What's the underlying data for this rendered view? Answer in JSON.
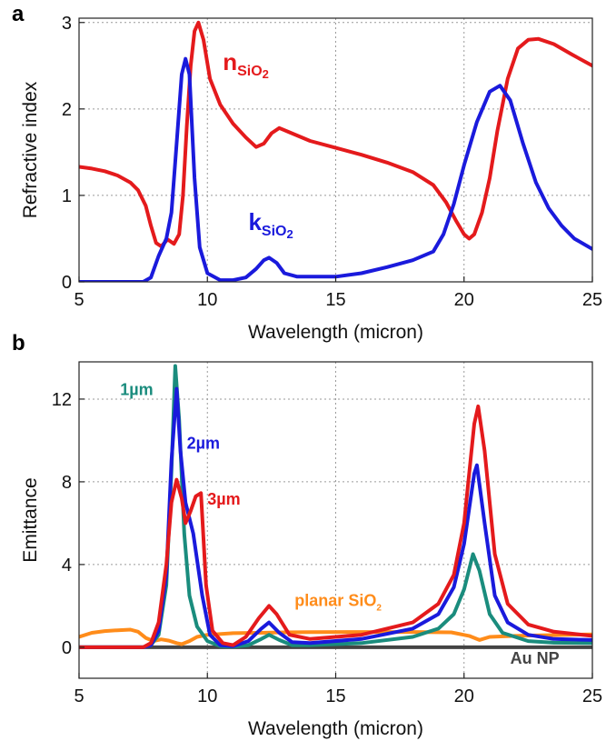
{
  "chart_data": [
    {
      "panel": "a",
      "type": "line",
      "title": "",
      "xlabel": "Wavelength (micron)",
      "ylabel": "Refractive index",
      "xlim": [
        5,
        25
      ],
      "ylim": [
        0,
        3.05
      ],
      "xticks": [
        5,
        10,
        15,
        20,
        25
      ],
      "yticks": [
        0,
        1,
        2,
        3
      ],
      "grid": "dotted",
      "series": [
        {
          "id": "n",
          "color": "#e41a1c",
          "points": [
            [
              5,
              1.33
            ],
            [
              5.5,
              1.31
            ],
            [
              6,
              1.28
            ],
            [
              6.5,
              1.23
            ],
            [
              7,
              1.15
            ],
            [
              7.3,
              1.06
            ],
            [
              7.6,
              0.88
            ],
            [
              7.8,
              0.65
            ],
            [
              8.0,
              0.45
            ],
            [
              8.2,
              0.41
            ],
            [
              8.45,
              0.49
            ],
            [
              8.7,
              0.44
            ],
            [
              8.9,
              0.55
            ],
            [
              9.05,
              1.0
            ],
            [
              9.2,
              1.8
            ],
            [
              9.35,
              2.5
            ],
            [
              9.5,
              2.9
            ],
            [
              9.65,
              3.0
            ],
            [
              9.85,
              2.8
            ],
            [
              10.1,
              2.35
            ],
            [
              10.5,
              2.05
            ],
            [
              11.0,
              1.83
            ],
            [
              11.5,
              1.67
            ],
            [
              11.9,
              1.56
            ],
            [
              12.2,
              1.6
            ],
            [
              12.5,
              1.72
            ],
            [
              12.8,
              1.78
            ],
            [
              13.2,
              1.73
            ],
            [
              14,
              1.63
            ],
            [
              15,
              1.55
            ],
            [
              16,
              1.47
            ],
            [
              17,
              1.38
            ],
            [
              18,
              1.27
            ],
            [
              18.8,
              1.12
            ],
            [
              19.3,
              0.92
            ],
            [
              19.7,
              0.7
            ],
            [
              20.0,
              0.55
            ],
            [
              20.2,
              0.5
            ],
            [
              20.4,
              0.55
            ],
            [
              20.7,
              0.8
            ],
            [
              21.0,
              1.2
            ],
            [
              21.3,
              1.75
            ],
            [
              21.7,
              2.35
            ],
            [
              22.1,
              2.7
            ],
            [
              22.5,
              2.8
            ],
            [
              22.9,
              2.81
            ],
            [
              23.5,
              2.75
            ],
            [
              24.2,
              2.63
            ],
            [
              25,
              2.5
            ]
          ]
        },
        {
          "id": "k",
          "color": "#1a1adc",
          "points": [
            [
              5,
              0.0
            ],
            [
              7.5,
              0.0
            ],
            [
              7.8,
              0.05
            ],
            [
              8.1,
              0.3
            ],
            [
              8.4,
              0.5
            ],
            [
              8.6,
              0.8
            ],
            [
              8.8,
              1.6
            ],
            [
              9.0,
              2.4
            ],
            [
              9.15,
              2.58
            ],
            [
              9.3,
              2.4
            ],
            [
              9.5,
              1.2
            ],
            [
              9.7,
              0.4
            ],
            [
              10.0,
              0.1
            ],
            [
              10.5,
              0.02
            ],
            [
              11.0,
              0.02
            ],
            [
              11.5,
              0.05
            ],
            [
              11.9,
              0.15
            ],
            [
              12.2,
              0.25
            ],
            [
              12.4,
              0.28
            ],
            [
              12.7,
              0.22
            ],
            [
              13.0,
              0.1
            ],
            [
              13.5,
              0.06
            ],
            [
              15,
              0.06
            ],
            [
              16,
              0.1
            ],
            [
              17,
              0.17
            ],
            [
              18,
              0.25
            ],
            [
              18.8,
              0.35
            ],
            [
              19.2,
              0.55
            ],
            [
              19.6,
              0.9
            ],
            [
              20.0,
              1.35
            ],
            [
              20.5,
              1.85
            ],
            [
              21.0,
              2.2
            ],
            [
              21.4,
              2.27
            ],
            [
              21.8,
              2.1
            ],
            [
              22.3,
              1.6
            ],
            [
              22.8,
              1.15
            ],
            [
              23.3,
              0.85
            ],
            [
              23.8,
              0.65
            ],
            [
              24.3,
              0.5
            ],
            [
              25,
              0.38
            ]
          ]
        }
      ],
      "annotations": [
        {
          "text": "n",
          "sub": "SiO",
          "sub2": "2",
          "color": "#e41a1c",
          "x": 10.6,
          "y": 2.45
        },
        {
          "text": "k",
          "sub": "SiO",
          "sub2": "2",
          "color": "#1a1adc",
          "x": 11.6,
          "y": 0.6
        }
      ]
    },
    {
      "panel": "b",
      "type": "line",
      "title": "",
      "xlabel": "Wavelength (micron)",
      "ylabel": "Emittance",
      "xlim": [
        5,
        25
      ],
      "ylim": [
        -1.5,
        13.8
      ],
      "xticks": [
        5,
        10,
        15,
        20,
        25
      ],
      "yticks": [
        0,
        4,
        8,
        12
      ],
      "grid": "dotted",
      "series": [
        {
          "id": "au",
          "color": "#444444",
          "points": [
            [
              5,
              0.0
            ],
            [
              25,
              0.0
            ]
          ]
        },
        {
          "id": "planar",
          "color": "#ff8c1a",
          "points": [
            [
              5,
              0.5
            ],
            [
              5.5,
              0.7
            ],
            [
              6,
              0.78
            ],
            [
              6.5,
              0.82
            ],
            [
              7,
              0.85
            ],
            [
              7.3,
              0.75
            ],
            [
              7.6,
              0.45
            ],
            [
              7.9,
              0.3
            ],
            [
              8.2,
              0.38
            ],
            [
              8.5,
              0.32
            ],
            [
              8.8,
              0.2
            ],
            [
              9.0,
              0.15
            ],
            [
              9.3,
              0.3
            ],
            [
              9.6,
              0.5
            ],
            [
              10,
              0.6
            ],
            [
              11,
              0.68
            ],
            [
              12,
              0.7
            ],
            [
              13,
              0.72
            ],
            [
              14,
              0.73
            ],
            [
              16,
              0.74
            ],
            [
              18,
              0.74
            ],
            [
              19.5,
              0.72
            ],
            [
              20.2,
              0.55
            ],
            [
              20.6,
              0.35
            ],
            [
              21,
              0.5
            ],
            [
              22,
              0.55
            ],
            [
              23,
              0.58
            ],
            [
              24,
              0.6
            ],
            [
              25,
              0.62
            ]
          ]
        },
        {
          "id": "um1",
          "color": "#1a8c7d",
          "points": [
            [
              5,
              0.0
            ],
            [
              7.5,
              0.0
            ],
            [
              7.8,
              0.1
            ],
            [
              8.1,
              0.6
            ],
            [
              8.4,
              3.0
            ],
            [
              8.6,
              8.5
            ],
            [
              8.75,
              13.6
            ],
            [
              8.9,
              11.0
            ],
            [
              9.1,
              5.5
            ],
            [
              9.3,
              2.5
            ],
            [
              9.6,
              1.0
            ],
            [
              10.0,
              0.3
            ],
            [
              10.5,
              0.05
            ],
            [
              11,
              0.02
            ],
            [
              11.6,
              0.1
            ],
            [
              12.1,
              0.4
            ],
            [
              12.4,
              0.6
            ],
            [
              12.8,
              0.35
            ],
            [
              13.3,
              0.1
            ],
            [
              14,
              0.1
            ],
            [
              16,
              0.2
            ],
            [
              18,
              0.5
            ],
            [
              19,
              0.9
            ],
            [
              19.6,
              1.6
            ],
            [
              20.0,
              2.8
            ],
            [
              20.35,
              4.5
            ],
            [
              20.6,
              3.7
            ],
            [
              21.0,
              1.6
            ],
            [
              21.5,
              0.7
            ],
            [
              22.5,
              0.3
            ],
            [
              23.5,
              0.22
            ],
            [
              25,
              0.2
            ]
          ]
        },
        {
          "id": "um2",
          "color": "#1a1adc",
          "points": [
            [
              5,
              0.0
            ],
            [
              7.5,
              0.0
            ],
            [
              7.8,
              0.1
            ],
            [
              8.1,
              0.8
            ],
            [
              8.4,
              3.5
            ],
            [
              8.6,
              9.0
            ],
            [
              8.8,
              12.5
            ],
            [
              8.95,
              9.5
            ],
            [
              9.15,
              7.0
            ],
            [
              9.45,
              5.5
            ],
            [
              9.8,
              2.5
            ],
            [
              10.1,
              0.6
            ],
            [
              10.5,
              0.1
            ],
            [
              11,
              0.05
            ],
            [
              11.6,
              0.3
            ],
            [
              12.1,
              0.9
            ],
            [
              12.4,
              1.2
            ],
            [
              12.8,
              0.7
            ],
            [
              13.3,
              0.25
            ],
            [
              14,
              0.2
            ],
            [
              16,
              0.4
            ],
            [
              18,
              0.9
            ],
            [
              19,
              1.6
            ],
            [
              19.6,
              2.9
            ],
            [
              20.0,
              5.0
            ],
            [
              20.4,
              8.4
            ],
            [
              20.5,
              8.8
            ],
            [
              20.8,
              6.0
            ],
            [
              21.2,
              2.5
            ],
            [
              21.7,
              1.2
            ],
            [
              22.5,
              0.6
            ],
            [
              23.5,
              0.4
            ],
            [
              25,
              0.35
            ]
          ]
        },
        {
          "id": "um3",
          "color": "#e41a1c",
          "points": [
            [
              5,
              0.0
            ],
            [
              7.5,
              0.0
            ],
            [
              7.8,
              0.2
            ],
            [
              8.1,
              1.2
            ],
            [
              8.4,
              4.0
            ],
            [
              8.6,
              7.0
            ],
            [
              8.8,
              8.1
            ],
            [
              9.0,
              7.2
            ],
            [
              9.15,
              6.0
            ],
            [
              9.35,
              6.6
            ],
            [
              9.55,
              7.3
            ],
            [
              9.75,
              7.45
            ],
            [
              9.95,
              3.0
            ],
            [
              10.2,
              0.8
            ],
            [
              10.6,
              0.2
            ],
            [
              11,
              0.1
            ],
            [
              11.5,
              0.5
            ],
            [
              12.0,
              1.4
            ],
            [
              12.4,
              2.0
            ],
            [
              12.7,
              1.6
            ],
            [
              13.2,
              0.6
            ],
            [
              14,
              0.4
            ],
            [
              16,
              0.6
            ],
            [
              18,
              1.2
            ],
            [
              19,
              2.1
            ],
            [
              19.6,
              3.5
            ],
            [
              20.0,
              6.0
            ],
            [
              20.4,
              10.8
            ],
            [
              20.55,
              11.65
            ],
            [
              20.8,
              9.5
            ],
            [
              21.2,
              4.5
            ],
            [
              21.7,
              2.1
            ],
            [
              22.5,
              1.1
            ],
            [
              23.5,
              0.75
            ],
            [
              25,
              0.55
            ]
          ]
        }
      ],
      "annotations": [
        {
          "text": "1µm",
          "color": "#1a8c7d",
          "x": 6.6,
          "y": 12.2
        },
        {
          "text": "2µm",
          "color": "#1a1adc",
          "x": 9.2,
          "y": 9.6
        },
        {
          "text": "3µm",
          "color": "#e41a1c",
          "x": 10.0,
          "y": 6.9
        },
        {
          "text": "planar SiO",
          "sub2": "2",
          "color": "#ff8c1a",
          "x": 13.4,
          "y": 2.0
        },
        {
          "text": "Au NP",
          "color": "#444444",
          "x": 21.8,
          "y": -0.8
        }
      ]
    }
  ]
}
